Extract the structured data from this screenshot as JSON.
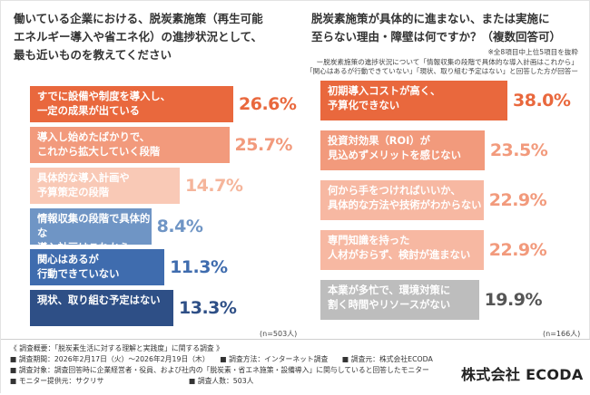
{
  "left": {
    "title": "働いている企業における、脱炭素施策（再生可能\nエネルギー導入や省エネ化）の進捗状況として、\n最も近いものを教えてください",
    "n_label": "(n=503人)"
  },
  "right": {
    "title": "脱炭素施策が具体的に進まない、または実施に\n至らない理由・障壁は何ですか？（複数回答可）",
    "note1": "※全8項目中上位5項目を抜粋",
    "note2": "ー脱炭素施策の進捗状況について「情報収集の段階で具体的な導入計画はこれから」",
    "note3": "「関心はあるが行動できていない」「現状、取り組む予定はない」と回答した方が回答ー",
    "n_label": "(n=166人)"
  },
  "chart_data": [
    {
      "type": "bar",
      "orientation": "horizontal",
      "categories": [
        "すでに設備や制度を導入し、\n一定の成果が出ている",
        "導入し始めたばかりで、\nこれから拡大していく段階",
        "具体的な導入計画や\n予算策定の段階",
        "情報収集の段階で具体的な\n導入計画はこれから",
        "関心はあるが\n行動できていない",
        "現状、取り組む予定はない"
      ],
      "values": [
        26.6,
        25.7,
        14.7,
        8.4,
        11.3,
        13.3
      ],
      "value_labels": [
        "26.6%",
        "25.7%",
        "14.7%",
        "8.4%",
        "11.3%",
        "13.3%"
      ],
      "bar_colors": [
        "#e9683d",
        "#f29a7c",
        "#f9c9b6",
        "#6f95c5",
        "#3f6cae",
        "#2e4f86"
      ],
      "label_colors": [
        "#e9683d",
        "#f29a7c",
        "#f5b59b",
        "#6f95c5",
        "#3f6cae",
        "#2e4f86"
      ],
      "xlim": [
        0,
        26.6
      ]
    },
    {
      "type": "bar",
      "orientation": "horizontal",
      "categories": [
        "初期導入コストが高く、\n予算化できない",
        "投資対効果（ROI）が\n見込めずメリットを感じない",
        "何から手をつければいいか、\n具体的な方法や技術がわからない",
        "専門知識を持った\n人材がおらず、検討が進まない",
        "本業が多忙で、環境対策に\n割く時間やリソースがない"
      ],
      "values": [
        38.0,
        23.5,
        22.9,
        22.9,
        19.9
      ],
      "value_labels": [
        "38.0%",
        "23.5%",
        "22.9%",
        "22.9%",
        "19.9%"
      ],
      "bar_colors": [
        "#e9683d",
        "#f29a7c",
        "#f7b8a2",
        "#f7b8a2",
        "#bdbdbd"
      ],
      "label_colors": [
        "#e9683d",
        "#f29a7c",
        "#f29a7c",
        "#f29a7c",
        "#555555"
      ]
    }
  ],
  "footer": {
    "line1": "《 調査概要：「脱炭素生活に対する理解と実践度」に関する調査 》",
    "line2": "■ 調査期間：2026年2月17日（火）～2026年2月19日（木）　　■ 調査方法：インターネット調査　　■ 調査元：株式会社ECODA",
    "line3": "■ 調査対象：調査回答時に企業経営者・役員、および社内の「脱炭素・省エネ施策・設備導入」に関与していると回答したモニター",
    "line4": "■ モニター提供元：サクリサ　　　　　　　　　　　　■ 調査人数：503人",
    "company": "株式会社 ECODA"
  }
}
